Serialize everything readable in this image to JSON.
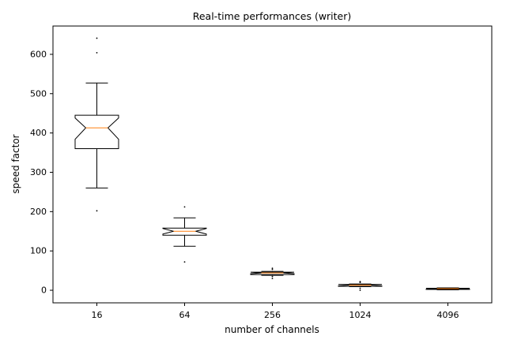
{
  "chart_data": {
    "type": "box",
    "title": "Real-time performances (writer)",
    "xlabel": "number of channels",
    "ylabel": "speed factor",
    "categories": [
      "16",
      "64",
      "256",
      "1024",
      "4096"
    ],
    "ylim": [
      -32,
      672
    ],
    "yticks": [
      0,
      100,
      200,
      300,
      400,
      500,
      600
    ],
    "notched": true,
    "grid": false,
    "box_color": "#000000",
    "median_color": "#ff7f0e",
    "boxes": [
      {
        "category": "16",
        "whislo": 260,
        "q1": 360,
        "med": 413,
        "q3": 445,
        "whishi": 527,
        "notch_lo": 384,
        "notch_hi": 438,
        "fliers": [
          202,
          604,
          641
        ]
      },
      {
        "category": "64",
        "whislo": 112,
        "q1": 140,
        "med": 150,
        "q3": 158,
        "whishi": 184,
        "notch_lo": 143,
        "notch_hi": 157,
        "fliers": [
          72,
          212
        ]
      },
      {
        "category": "256",
        "whislo": 38,
        "q1": 40,
        "med": 44,
        "q3": 46,
        "whishi": 48,
        "notch_lo": 42,
        "notch_hi": 46,
        "fliers": [
          30,
          35,
          53,
          56
        ]
      },
      {
        "category": "1024",
        "whislo": 9,
        "q1": 10,
        "med": 13,
        "q3": 15,
        "whishi": 16,
        "notch_lo": 11,
        "notch_hi": 15,
        "fliers": [
          0,
          5,
          20,
          22
        ]
      },
      {
        "category": "4096",
        "whislo": 1,
        "q1": 2,
        "med": 4,
        "q3": 5,
        "whishi": 6,
        "notch_lo": 3,
        "notch_hi": 5,
        "fliers": []
      }
    ]
  }
}
